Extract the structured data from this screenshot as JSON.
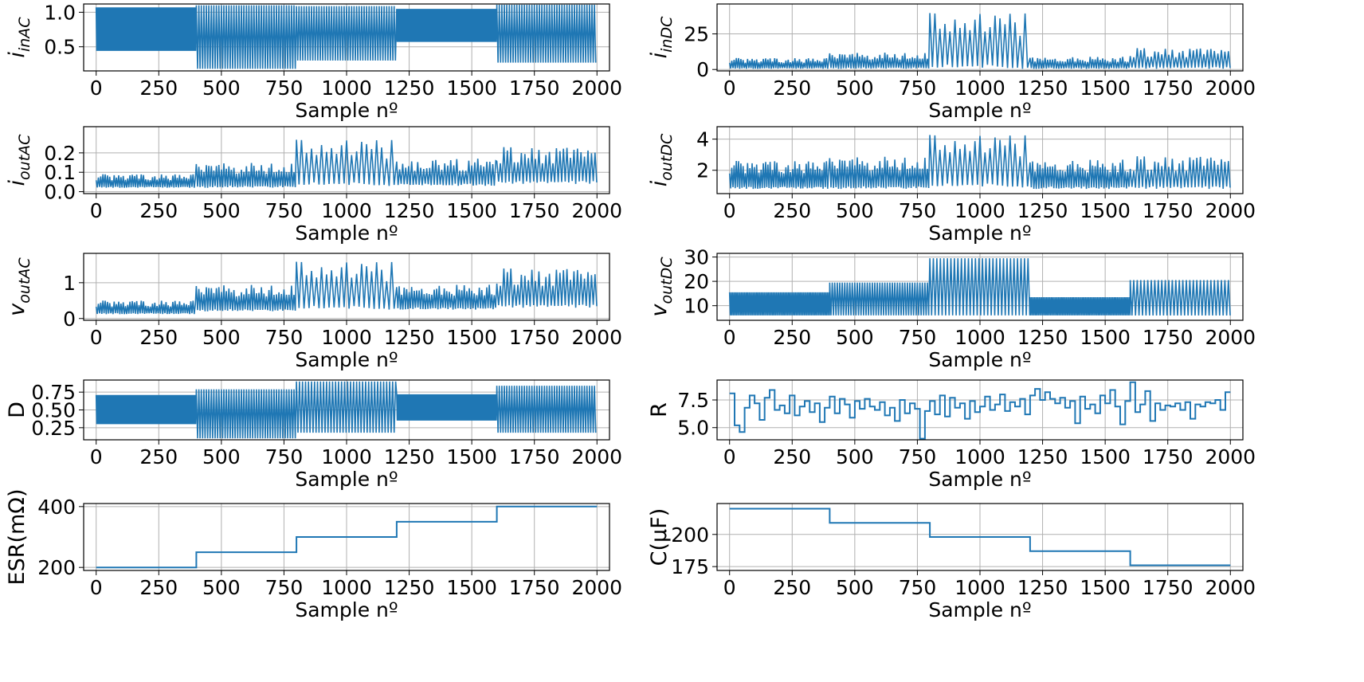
{
  "figure": {
    "accent": "#1f77b4",
    "grid_color": "#b0b0b0"
  },
  "chart_data": [
    {
      "id": "iinAC",
      "type": "line",
      "ylabel_main": "i",
      "ylabel_sub": "inAC",
      "xlabel": "Sample nº",
      "xlim": [
        -50,
        2050
      ],
      "ylim": [
        0.15,
        1.12
      ],
      "xticks": [
        0,
        250,
        500,
        750,
        1000,
        1250,
        1500,
        1750,
        2000
      ],
      "yticks": [
        0.5,
        1.0
      ],
      "ytick_labels": [
        "0.5",
        "1.0"
      ],
      "series": [
        {
          "name": "iinAC",
          "style": "dense",
          "segments": [
            {
              "x0": 0,
              "x1": 400,
              "low": 0.44,
              "high": 1.07,
              "period": 5
            },
            {
              "x0": 400,
              "x1": 800,
              "low": 0.18,
              "high": 1.1,
              "period": 10
            },
            {
              "x0": 800,
              "x1": 1200,
              "low": 0.3,
              "high": 1.09,
              "period": 10
            },
            {
              "x0": 1200,
              "x1": 1600,
              "low": 0.57,
              "high": 1.05,
              "period": 5
            },
            {
              "x0": 1600,
              "x1": 2000,
              "low": 0.27,
              "high": 1.11,
              "period": 10
            }
          ]
        }
      ]
    },
    {
      "id": "iinDC",
      "type": "line",
      "ylabel_main": "i",
      "ylabel_sub": "inDC",
      "xlabel": "Sample nº",
      "xlim": [
        -50,
        2050
      ],
      "ylim": [
        -1,
        46
      ],
      "xticks": [
        0,
        250,
        500,
        750,
        1000,
        1250,
        1500,
        1750,
        2000
      ],
      "yticks": [
        0,
        25
      ],
      "ytick_labels": [
        "0",
        "25"
      ],
      "series": [
        {
          "name": "iinDC",
          "style": "spiky",
          "segments": [
            {
              "x0": 0,
              "x1": 400,
              "base": 0.5,
              "peak": 8,
              "period": 9
            },
            {
              "x0": 400,
              "x1": 800,
              "base": 0.5,
              "peak": 12,
              "period": 10
            },
            {
              "x0": 800,
              "x1": 1200,
              "base": 0.5,
              "peak": 40,
              "period": 20
            },
            {
              "x0": 1200,
              "x1": 1600,
              "base": 0.5,
              "peak": 9,
              "period": 10
            },
            {
              "x0": 1600,
              "x1": 2000,
              "base": 0.5,
              "peak": 15,
              "period": 14
            }
          ]
        }
      ]
    },
    {
      "id": "ioutAC",
      "type": "line",
      "ylabel_main": "i",
      "ylabel_sub": "outAC",
      "xlabel": "Sample nº",
      "xlim": [
        -50,
        2050
      ],
      "ylim": [
        -0.01,
        0.335
      ],
      "xticks": [
        0,
        250,
        500,
        750,
        1000,
        1250,
        1500,
        1750,
        2000
      ],
      "yticks": [
        0.0,
        0.1,
        0.2
      ],
      "ytick_labels": [
        "0.0",
        "0.1",
        "0.2"
      ],
      "series": [
        {
          "name": "ioutAC",
          "style": "spiky",
          "segments": [
            {
              "x0": 0,
              "x1": 400,
              "base": 0.02,
              "peak": 0.09,
              "period": 9
            },
            {
              "x0": 400,
              "x1": 800,
              "base": 0.02,
              "peak": 0.15,
              "period": 10
            },
            {
              "x0": 800,
              "x1": 1200,
              "base": 0.03,
              "peak": 0.27,
              "period": 20
            },
            {
              "x0": 1200,
              "x1": 1600,
              "base": 0.03,
              "peak": 0.17,
              "period": 12
            },
            {
              "x0": 1600,
              "x1": 2000,
              "base": 0.04,
              "peak": 0.23,
              "period": 14
            }
          ]
        }
      ]
    },
    {
      "id": "ioutDC",
      "type": "line",
      "ylabel_main": "i",
      "ylabel_sub": "outDC",
      "xlabel": "Sample nº",
      "xlim": [
        -50,
        2050
      ],
      "ylim": [
        0.5,
        4.8
      ],
      "xticks": [
        0,
        250,
        500,
        750,
        1000,
        1250,
        1500,
        1750,
        2000
      ],
      "yticks": [
        2,
        4
      ],
      "ytick_labels": [
        "2",
        "4"
      ],
      "series": [
        {
          "name": "ioutDC",
          "style": "spiky",
          "segments": [
            {
              "x0": 0,
              "x1": 400,
              "base": 0.8,
              "peak": 2.6,
              "period": 9
            },
            {
              "x0": 400,
              "x1": 800,
              "base": 0.8,
              "peak": 2.9,
              "period": 10
            },
            {
              "x0": 800,
              "x1": 1200,
              "base": 0.9,
              "peak": 4.3,
              "period": 20
            },
            {
              "x0": 1200,
              "x1": 1600,
              "base": 0.8,
              "peak": 2.7,
              "period": 10
            },
            {
              "x0": 1600,
              "x1": 2000,
              "base": 0.8,
              "peak": 2.9,
              "period": 14
            }
          ]
        }
      ]
    },
    {
      "id": "voutAC",
      "type": "line",
      "ylabel_main": "v",
      "ylabel_sub": "outAC",
      "xlabel": "Sample nº",
      "xlim": [
        -50,
        2050
      ],
      "ylim": [
        -0.05,
        1.82
      ],
      "xticks": [
        0,
        250,
        500,
        750,
        1000,
        1250,
        1500,
        1750,
        2000
      ],
      "yticks": [
        0,
        1
      ],
      "ytick_labels": [
        "0",
        "1"
      ],
      "series": [
        {
          "name": "voutAC",
          "style": "spiky",
          "segments": [
            {
              "x0": 0,
              "x1": 400,
              "base": 0.12,
              "peak": 0.5,
              "period": 9
            },
            {
              "x0": 400,
              "x1": 800,
              "base": 0.2,
              "peak": 0.95,
              "period": 10
            },
            {
              "x0": 800,
              "x1": 1200,
              "base": 0.25,
              "peak": 1.6,
              "period": 20
            },
            {
              "x0": 1200,
              "x1": 1600,
              "base": 0.25,
              "peak": 0.95,
              "period": 10
            },
            {
              "x0": 1600,
              "x1": 2000,
              "base": 0.3,
              "peak": 1.4,
              "period": 14
            }
          ]
        }
      ]
    },
    {
      "id": "voutDC",
      "type": "line",
      "ylabel_main": "v",
      "ylabel_sub": "outDC",
      "xlabel": "Sample nº",
      "xlim": [
        -50,
        2050
      ],
      "ylim": [
        4,
        31.5
      ],
      "xticks": [
        0,
        250,
        500,
        750,
        1000,
        1250,
        1500,
        1750,
        2000
      ],
      "yticks": [
        10,
        20,
        30
      ],
      "ytick_labels": [
        "10",
        "20",
        "30"
      ],
      "series": [
        {
          "name": "voutDC",
          "style": "dense",
          "segments": [
            {
              "x0": 0,
              "x1": 400,
              "low": 6,
              "high": 15.5,
              "period": 6
            },
            {
              "x0": 400,
              "x1": 800,
              "low": 6,
              "high": 19.5,
              "period": 10
            },
            {
              "x0": 800,
              "x1": 1200,
              "low": 6,
              "high": 29.5,
              "period": 14
            },
            {
              "x0": 1200,
              "x1": 1600,
              "low": 6,
              "high": 13.5,
              "period": 6
            },
            {
              "x0": 1600,
              "x1": 2000,
              "low": 6,
              "high": 20.5,
              "period": 14
            }
          ]
        }
      ]
    },
    {
      "id": "D",
      "type": "line",
      "ylabel_main": "D",
      "ylabel_sub": "",
      "xlabel": "Sample nº",
      "xlim": [
        -50,
        2050
      ],
      "ylim": [
        0.08,
        0.92
      ],
      "xticks": [
        0,
        250,
        500,
        750,
        1000,
        1250,
        1500,
        1750,
        2000
      ],
      "yticks": [
        0.25,
        0.5,
        0.75
      ],
      "ytick_labels": [
        "0.25",
        "0.50",
        "0.75"
      ],
      "series": [
        {
          "name": "D",
          "style": "dense",
          "segments": [
            {
              "x0": 0,
              "x1": 400,
              "low": 0.3,
              "high": 0.71,
              "period": 5
            },
            {
              "x0": 400,
              "x1": 800,
              "low": 0.1,
              "high": 0.79,
              "period": 10
            },
            {
              "x0": 800,
              "x1": 1200,
              "low": 0.18,
              "high": 0.9,
              "period": 12
            },
            {
              "x0": 1200,
              "x1": 1600,
              "low": 0.35,
              "high": 0.72,
              "period": 5
            },
            {
              "x0": 1600,
              "x1": 2000,
              "low": 0.18,
              "high": 0.84,
              "period": 10
            }
          ]
        }
      ]
    },
    {
      "id": "R",
      "type": "line",
      "ylabel_main": "R",
      "ylabel_sub": "",
      "xlabel": "Sample nº",
      "xlim": [
        -50,
        2050
      ],
      "ylim": [
        3.9,
        9.3
      ],
      "xticks": [
        0,
        250,
        500,
        750,
        1000,
        1250,
        1500,
        1750,
        2000
      ],
      "yticks": [
        5.0,
        7.5
      ],
      "ytick_labels": [
        "5.0",
        "7.5"
      ],
      "series": [
        {
          "name": "R",
          "style": "step",
          "x": [
            0,
            20,
            40,
            60,
            80,
            100,
            120,
            140,
            160,
            180,
            200,
            220,
            240,
            260,
            280,
            300,
            320,
            340,
            360,
            380,
            400,
            420,
            440,
            460,
            480,
            500,
            520,
            540,
            560,
            580,
            600,
            620,
            640,
            660,
            680,
            700,
            720,
            740,
            760,
            780,
            800,
            820,
            840,
            860,
            880,
            900,
            920,
            940,
            960,
            980,
            1000,
            1020,
            1040,
            1060,
            1080,
            1100,
            1120,
            1140,
            1160,
            1180,
            1200,
            1220,
            1240,
            1260,
            1280,
            1300,
            1320,
            1340,
            1360,
            1380,
            1400,
            1420,
            1440,
            1460,
            1480,
            1500,
            1520,
            1540,
            1560,
            1580,
            1600,
            1620,
            1640,
            1660,
            1680,
            1700,
            1720,
            1740,
            1760,
            1780,
            1800,
            1820,
            1840,
            1860,
            1880,
            1900,
            1920,
            1940,
            1960,
            1980,
            2000
          ],
          "values": [
            8.1,
            5.2,
            4.6,
            6.8,
            7.9,
            7.2,
            5.7,
            7.7,
            8.4,
            6.6,
            7.0,
            6.3,
            7.9,
            6.1,
            6.9,
            7.4,
            6.4,
            7.2,
            5.5,
            6.8,
            7.8,
            6.3,
            7.6,
            7.1,
            5.9,
            7.4,
            6.7,
            7.6,
            6.9,
            6.6,
            7.3,
            6.1,
            6.8,
            5.6,
            7.5,
            6.3,
            7.2,
            6.7,
            4.0,
            6.5,
            7.4,
            6.2,
            7.9,
            6.0,
            7.7,
            6.8,
            7.2,
            5.8,
            7.4,
            6.4,
            6.9,
            7.8,
            6.6,
            7.1,
            8.0,
            6.5,
            7.3,
            6.9,
            7.6,
            6.2,
            7.9,
            8.5,
            7.5,
            8.2,
            7.6,
            7.2,
            7.7,
            6.8,
            7.4,
            5.4,
            7.8,
            6.7,
            7.1,
            6.3,
            7.9,
            7.2,
            8.4,
            6.9,
            5.3,
            7.4,
            9.1,
            6.4,
            7.1,
            8.3,
            5.6,
            7.2,
            6.6,
            7.0,
            6.9,
            7.2,
            6.6,
            7.3,
            5.8,
            7.1,
            6.9,
            7.3,
            7.2,
            7.5,
            6.6,
            8.2,
            8.2
          ]
        }
      ]
    },
    {
      "id": "ESR",
      "type": "line",
      "ylabel_main": "ESR(mΩ)",
      "ylabel_sub": "",
      "xlabel": "Sample nº",
      "xlim": [
        -50,
        2050
      ],
      "ylim": [
        190,
        410
      ],
      "xticks": [
        0,
        250,
        500,
        750,
        1000,
        1250,
        1500,
        1750,
        2000
      ],
      "yticks": [
        200,
        400
      ],
      "ytick_labels": [
        "200",
        "400"
      ],
      "series": [
        {
          "name": "ESR",
          "style": "step",
          "x": [
            0,
            400,
            800,
            1200,
            1600,
            2000
          ],
          "values": [
            200,
            250,
            300,
            350,
            400,
            400
          ]
        }
      ]
    },
    {
      "id": "C",
      "type": "line",
      "ylabel_main": "C(μF)",
      "ylabel_sub": "",
      "xlabel": "Sample nº",
      "xlim": [
        -50,
        2050
      ],
      "ylim": [
        172,
        224
      ],
      "xticks": [
        0,
        250,
        500,
        750,
        1000,
        1250,
        1500,
        1750,
        2000
      ],
      "yticks": [
        175,
        200
      ],
      "ytick_labels": [
        "175",
        "200"
      ],
      "series": [
        {
          "name": "C",
          "style": "step",
          "x": [
            0,
            400,
            800,
            1200,
            1600,
            2000
          ],
          "values": [
            220,
            209,
            198,
            187,
            176,
            176
          ]
        }
      ]
    }
  ]
}
